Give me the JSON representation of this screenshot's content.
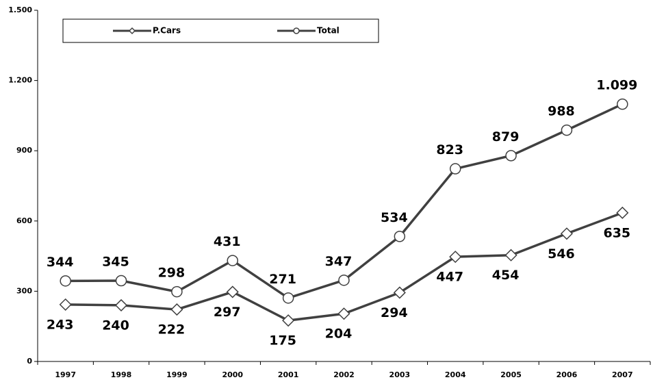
{
  "chart_data": {
    "type": "line",
    "categories": [
      "1997",
      "1998",
      "1999",
      "2000",
      "2001",
      "2002",
      "2003",
      "2004",
      "2005",
      "2006",
      "2007"
    ],
    "series": [
      {
        "name": "P.Cars",
        "color": "#404040",
        "marker": "diamond",
        "values": [
          243,
          240,
          222,
          297,
          175,
          204,
          294,
          447,
          454,
          546,
          635
        ]
      },
      {
        "name": "Total",
        "color": "#404040",
        "marker": "circle",
        "values": [
          344,
          345,
          298,
          431,
          271,
          347,
          534,
          823,
          879,
          988,
          1099
        ],
        "value_labels": [
          "344",
          "345",
          "298",
          "431",
          "271",
          "347",
          "534",
          "823",
          "879",
          "988",
          "1.099"
        ]
      }
    ],
    "ylim": [
      0,
      1500
    ],
    "yticks": [
      0,
      300,
      600,
      900,
      {
        "value": 1200,
        "label": "1.200"
      },
      {
        "value": 1500,
        "label": "1.500"
      }
    ],
    "grid": false,
    "legend": "top-left"
  }
}
